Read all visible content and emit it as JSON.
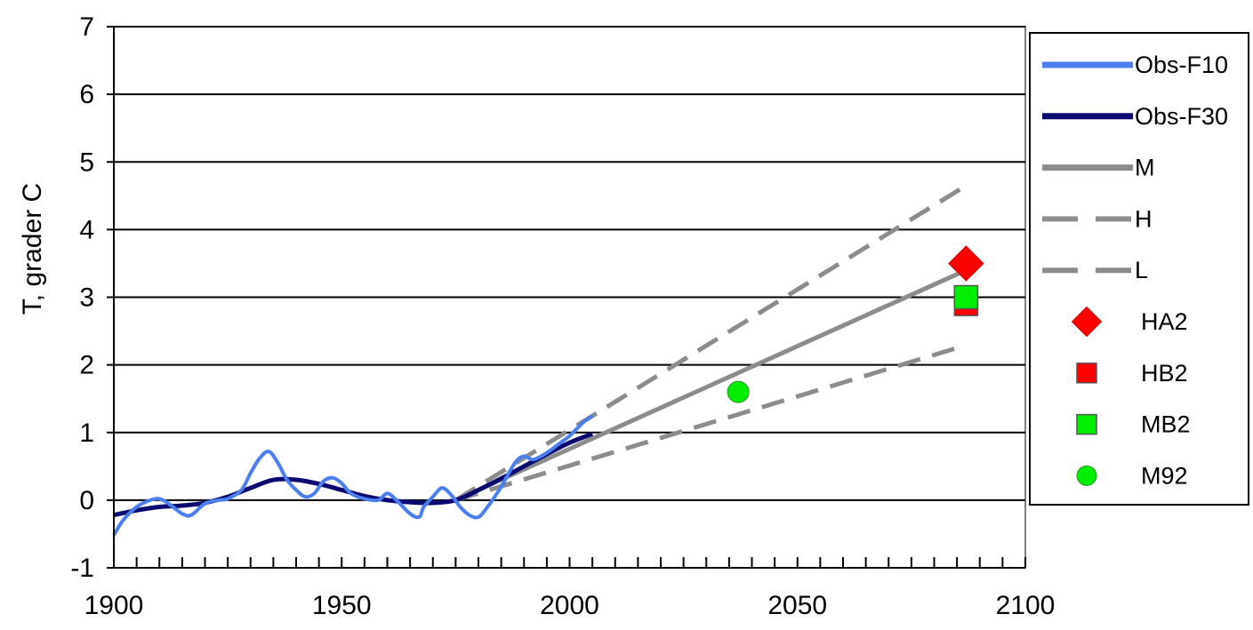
{
  "chart_data": {
    "type": "line",
    "title": "",
    "xlabel": "",
    "ylabel": "T, grader C",
    "xlim": [
      1900,
      2100
    ],
    "ylim": [
      -1,
      7
    ],
    "x_ticks": [
      1900,
      1950,
      2000,
      2050,
      2100
    ],
    "y_ticks": [
      -1,
      0,
      1,
      2,
      3,
      4,
      5,
      6,
      7
    ],
    "grid": "horizontal",
    "legend_position": "right",
    "series": [
      {
        "name": "Obs-F10",
        "kind": "line",
        "color": "#4a7ff0",
        "x": [
          1900,
          1902,
          1905,
          1908,
          1910,
          1912,
          1915,
          1917,
          1920,
          1923,
          1925,
          1928,
          1930,
          1932,
          1934,
          1936,
          1938,
          1940,
          1942,
          1944,
          1946,
          1948,
          1950,
          1952,
          1955,
          1958,
          1960,
          1962,
          1965,
          1967,
          1968,
          1970,
          1972,
          1974,
          1976,
          1978,
          1980,
          1982,
          1985,
          1988,
          1990,
          1992,
          1995,
          1998,
          2000,
          2003,
          2005
        ],
        "y": [
          -0.52,
          -0.3,
          -0.1,
          0.0,
          0.02,
          -0.05,
          -0.2,
          -0.22,
          -0.05,
          0.0,
          0.02,
          0.15,
          0.4,
          0.62,
          0.72,
          0.55,
          0.3,
          0.15,
          0.05,
          0.1,
          0.28,
          0.33,
          0.25,
          0.1,
          0.02,
          0.0,
          0.1,
          0.0,
          -0.2,
          -0.25,
          -0.1,
          0.05,
          0.18,
          0.08,
          -0.1,
          -0.22,
          -0.25,
          -0.1,
          0.2,
          0.55,
          0.65,
          0.6,
          0.7,
          0.85,
          0.95,
          1.15,
          1.25
        ]
      },
      {
        "name": "Obs-F30",
        "kind": "line",
        "color": "#0a0a70",
        "x": [
          1900,
          1905,
          1910,
          1915,
          1920,
          1925,
          1930,
          1935,
          1940,
          1945,
          1950,
          1955,
          1960,
          1965,
          1970,
          1975,
          1980,
          1985,
          1990,
          1995,
          2000,
          2005
        ],
        "y": [
          -0.22,
          -0.15,
          -0.1,
          -0.08,
          -0.04,
          0.05,
          0.18,
          0.3,
          0.3,
          0.24,
          0.15,
          0.06,
          0.0,
          -0.03,
          -0.04,
          0.0,
          0.15,
          0.32,
          0.5,
          0.68,
          0.85,
          0.98
        ]
      },
      {
        "name": "M",
        "kind": "line",
        "color": "#8c8c8c",
        "x": [
          1975,
          2087
        ],
        "y": [
          0.0,
          3.4
        ]
      },
      {
        "name": "H",
        "kind": "line",
        "color": "#8c8c8c",
        "dashed": true,
        "x": [
          1975,
          2087
        ],
        "y": [
          0.0,
          4.65
        ]
      },
      {
        "name": "L",
        "kind": "line",
        "color": "#8c8c8c",
        "dashed": true,
        "x": [
          1975,
          2085
        ],
        "y": [
          0.0,
          2.25
        ]
      },
      {
        "name": "HA2",
        "kind": "diamond",
        "color": "#ff0000",
        "x": [
          2087
        ],
        "y": [
          3.5
        ]
      },
      {
        "name": "HB2",
        "kind": "square",
        "color": "#ff0000",
        "x": [
          2087
        ],
        "y": [
          2.9
        ]
      },
      {
        "name": "MB2",
        "kind": "square",
        "color": "#00ee00",
        "x": [
          2087
        ],
        "y": [
          3.0
        ]
      },
      {
        "name": "M92",
        "kind": "circle",
        "color": "#00ee00",
        "x": [
          2037
        ],
        "y": [
          1.6
        ]
      }
    ]
  }
}
